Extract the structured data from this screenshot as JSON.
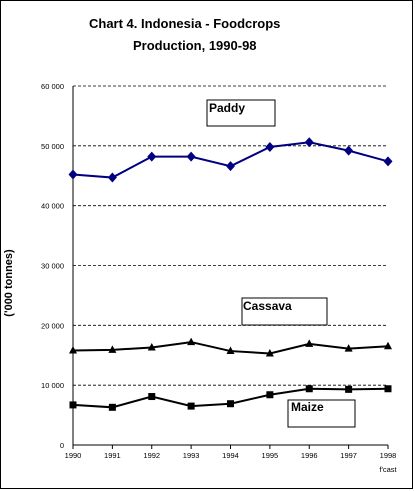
{
  "title_line1": "Chart  4.  Indonesia - Foodcrops",
  "title_line2": "Production, 1990-98",
  "chart_data": {
    "type": "line",
    "title": "Chart  4.  Indonesia - Foodcrops Production, 1990-98",
    "xlabel": "",
    "ylabel": "('000 tonnes)",
    "x": [
      "1990",
      "1991",
      "1992",
      "1993",
      "1994",
      "1995",
      "1996",
      "1997",
      "1998"
    ],
    "x_note": "f'cast",
    "ylim": [
      0,
      60000
    ],
    "yticks": [
      0,
      10000,
      20000,
      30000,
      40000,
      50000,
      60000
    ],
    "ytick_labels": [
      "0",
      "10 000",
      "20 000",
      "30 000",
      "40 000",
      "50 000",
      "60 000"
    ],
    "grid": "dashed horizontal",
    "series": [
      {
        "name": "Paddy",
        "marker": "diamond",
        "color": "#000080",
        "values": [
          45200,
          44700,
          48200,
          48200,
          46600,
          49800,
          50600,
          49200,
          47400
        ]
      },
      {
        "name": "Cassava",
        "marker": "triangle",
        "color": "#000000",
        "values": [
          15800,
          15900,
          16300,
          17200,
          15700,
          15300,
          16900,
          16100,
          16500
        ]
      },
      {
        "name": "Maize",
        "marker": "square",
        "color": "#000000",
        "values": [
          6700,
          6300,
          8100,
          6500,
          6900,
          8400,
          9400,
          9300,
          9400
        ]
      }
    ]
  }
}
